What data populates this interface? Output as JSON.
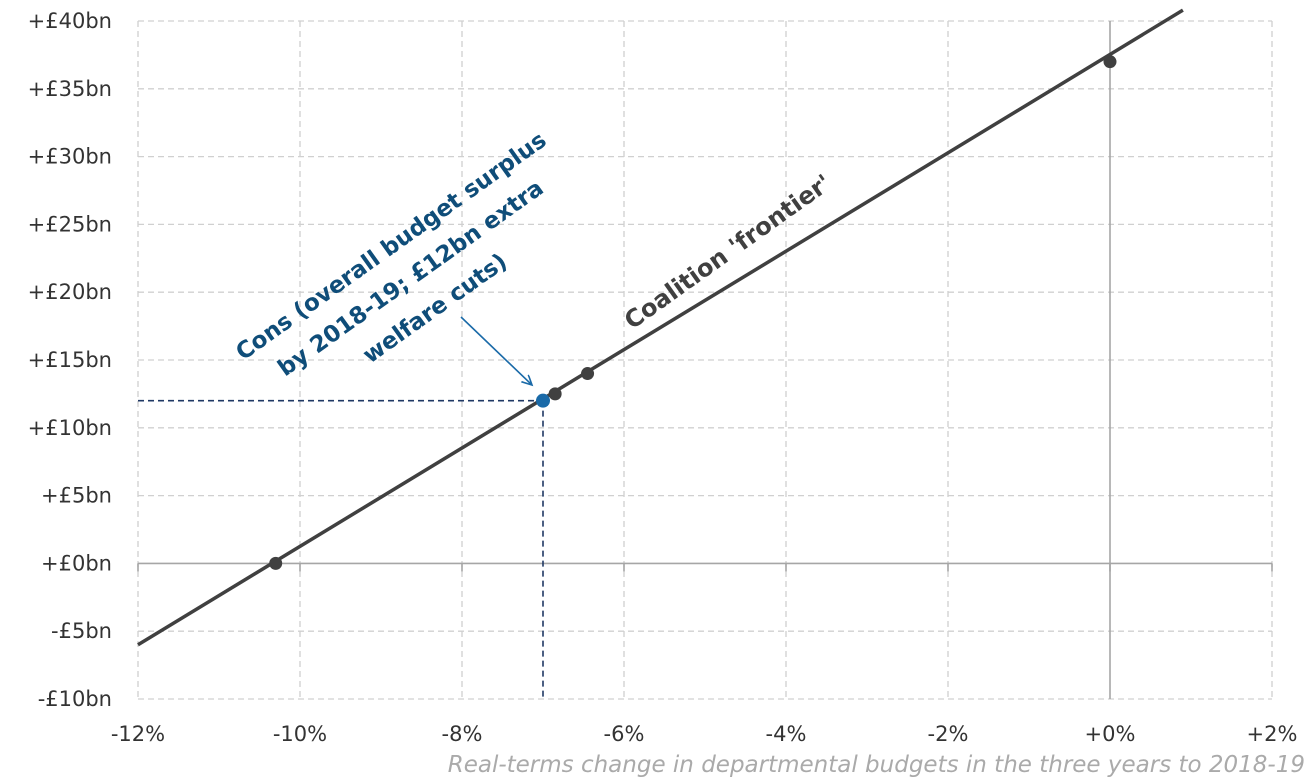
{
  "chart_data": {
    "type": "line",
    "title": "",
    "xlabel": "Real-terms change in departmental budgets in the three years to 2018-19",
    "ylabel": "",
    "xlim": [
      -12,
      2
    ],
    "ylim": [
      -10,
      40
    ],
    "grid": true,
    "x_ticks": [
      -12,
      -10,
      -8,
      -6,
      -4,
      -2,
      0,
      2
    ],
    "x_tick_labels": [
      "-12%",
      "-10%",
      "-8%",
      "-6%",
      "-4%",
      "-2%",
      "+0%",
      "+2%"
    ],
    "y_ticks": [
      -10,
      -5,
      0,
      5,
      10,
      15,
      20,
      25,
      30,
      35,
      40
    ],
    "y_tick_labels": [
      "-£10bn",
      "-£5bn",
      "+£0bn",
      "+£5bn",
      "+£10bn",
      "+£15bn",
      "+£20bn",
      "+£25bn",
      "+£30bn",
      "+£35bn",
      "+£40bn"
    ],
    "series": [
      {
        "name": "Coalition 'frontier'",
        "color": "#404040",
        "line": [
          [
            -12,
            -6.0
          ],
          [
            0.9,
            40.8
          ]
        ],
        "points": [
          {
            "x": -10.3,
            "y": 0.0
          },
          {
            "x": -6.85,
            "y": 12.5
          },
          {
            "x": -6.45,
            "y": 14.0
          },
          {
            "x": 0.0,
            "y": 37.0
          }
        ]
      }
    ],
    "highlight": {
      "x": -7.0,
      "y": 12.0,
      "color": "#1a6aa8",
      "guide_color": "#1f3864",
      "label_lines": [
        "Cons (overall budget surplus",
        "by 2018-19; £12bn extra",
        "welfare cuts)"
      ],
      "label_color": "#0f4d79"
    },
    "annotations": {
      "frontier_label": "Coalition 'frontier'"
    }
  }
}
